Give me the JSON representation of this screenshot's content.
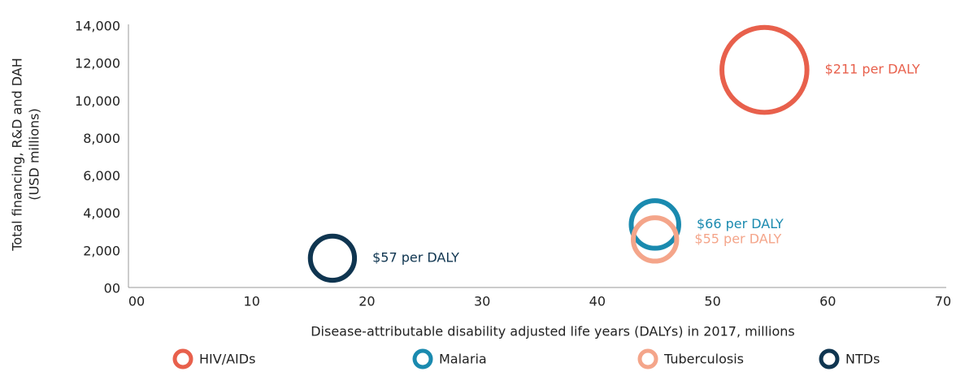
{
  "chart_data": {
    "type": "bubble",
    "x_label": "Disease-attributable disability adjusted life years (DALYs) in 2017, millions",
    "y_label": [
      "Total financing, R&D and DAH",
      "(USD millions)"
    ],
    "xlim": [
      0,
      70
    ],
    "xticks": [
      {
        "value": 0,
        "label": "00"
      },
      10,
      20,
      30,
      40,
      50,
      60,
      70
    ],
    "ylim": [
      0,
      14000
    ],
    "yticks": [
      {
        "value": 0,
        "label": "00"
      },
      {
        "value": 2000,
        "label": "2,000"
      },
      {
        "value": 4000,
        "label": "4,000"
      },
      {
        "value": 6000,
        "label": "6,000"
      },
      {
        "value": 8000,
        "label": "8,000"
      },
      {
        "value": 10000,
        "label": "10,000"
      },
      {
        "value": 12000,
        "label": "12,000"
      },
      {
        "value": 14000,
        "label": "14,000"
      }
    ],
    "legend": "bottom",
    "series": [
      {
        "name": "HIV/AIDs",
        "color": "#e8604c",
        "x": [
          54.5
        ],
        "values": [
          11700
        ],
        "sizes": [
          211
        ],
        "size_labels": [
          "$211 per DALY"
        ]
      },
      {
        "name": "Malaria",
        "color": "#1a8aaf",
        "x": [
          45
        ],
        "values": [
          3450
        ],
        "sizes": [
          66
        ],
        "size_labels": [
          "$66 per DALY"
        ]
      },
      {
        "name": "Tuberculosis",
        "color": "#f4a58a",
        "x": [
          45
        ],
        "values": [
          2650
        ],
        "sizes": [
          55
        ],
        "size_labels": [
          "$55 per DALY"
        ]
      },
      {
        "name": "NTDs",
        "color": "#0f3550",
        "x": [
          17
        ],
        "values": [
          1650
        ],
        "sizes": [
          57
        ],
        "size_labels": [
          "$57 per DALY"
        ]
      }
    ]
  }
}
